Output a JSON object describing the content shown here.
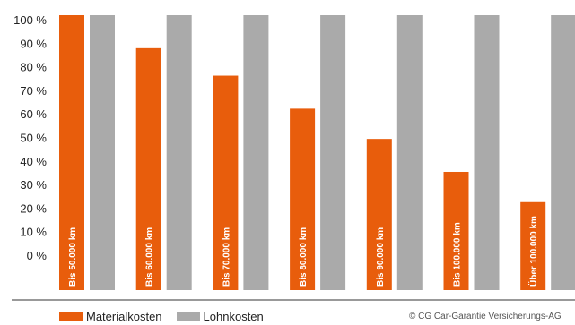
{
  "chart_data": {
    "type": "bar",
    "categories": [
      "Bis 50.000 km",
      "Bis 60.000 km",
      "Bis 70.000 km",
      "Bis 80.000 km",
      "Bis 90.000 km",
      "Bis 100.000 km",
      "Über 100.000 km"
    ],
    "series": [
      {
        "name": "Materialkosten",
        "color": "#e85d0c",
        "values": [
          100,
          88,
          78,
          66,
          55,
          43,
          32
        ]
      },
      {
        "name": "Lohnkosten",
        "color": "#aaaaaa",
        "values": [
          100,
          100,
          100,
          100,
          100,
          100,
          100
        ]
      }
    ],
    "yticks": [
      "0 %",
      "10 %",
      "20 %",
      "30 %",
      "40 %",
      "50 %",
      "60 %",
      "70 %",
      "80 %",
      "90 %",
      "100 %"
    ],
    "ylim": [
      0,
      100
    ],
    "legend_position": "bottom-left"
  },
  "legend": {
    "series1": "Materialkosten",
    "series2": "Lohnkosten"
  },
  "copyright": "© CG Car-Garantie Versicherungs-AG"
}
